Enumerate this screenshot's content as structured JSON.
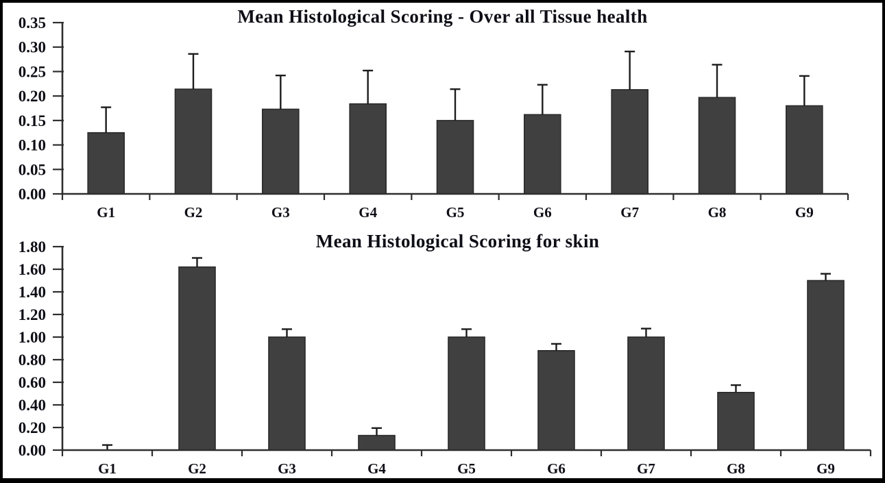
{
  "figure": {
    "background": "#ffffff",
    "frame_color": "#000000",
    "bar_fill": "#404040",
    "bar_stroke": "#2a2a2a",
    "axis_color": "#2e2e2e",
    "error_bar_color": "#1c1c1c",
    "text_color": "#0e0e16"
  },
  "chart_data": [
    {
      "type": "bar",
      "title": "Mean Histological Scoring - Over all Tissue health",
      "categories": [
        "G1",
        "G2",
        "G3",
        "G4",
        "G5",
        "G6",
        "G7",
        "G8",
        "G9"
      ],
      "values": [
        0.125,
        0.214,
        0.173,
        0.184,
        0.15,
        0.162,
        0.213,
        0.197,
        0.18
      ],
      "errors_plus": [
        0.052,
        0.072,
        0.069,
        0.068,
        0.064,
        0.061,
        0.078,
        0.067,
        0.061
      ],
      "xlabel": "",
      "ylabel": "",
      "ylim": [
        0,
        0.35
      ],
      "ytick_step": 0.05,
      "ytick_labels": [
        "0.00",
        "0.05",
        "0.10",
        "0.15",
        "0.20",
        "0.25",
        "0.30",
        "0.35"
      ],
      "grid": false,
      "legend": null
    },
    {
      "type": "bar",
      "title": "Mean Histological Scoring for skin",
      "categories": [
        "G1",
        "G2",
        "G3",
        "G4",
        "G5",
        "G6",
        "G7",
        "G8",
        "G9"
      ],
      "values": [
        0.0,
        1.62,
        1.0,
        0.13,
        1.0,
        0.88,
        1.0,
        0.51,
        1.5
      ],
      "errors_plus": [
        0.045,
        0.08,
        0.07,
        0.065,
        0.07,
        0.06,
        0.075,
        0.065,
        0.06
      ],
      "xlabel": "",
      "ylabel": "",
      "ylim": [
        0,
        1.8
      ],
      "ytick_step": 0.2,
      "ytick_labels": [
        "0.00",
        "0.20",
        "0.40",
        "0.60",
        "0.80",
        "1.00",
        "1.20",
        "1.40",
        "1.60",
        "1.80"
      ],
      "grid": false,
      "legend": null
    }
  ]
}
